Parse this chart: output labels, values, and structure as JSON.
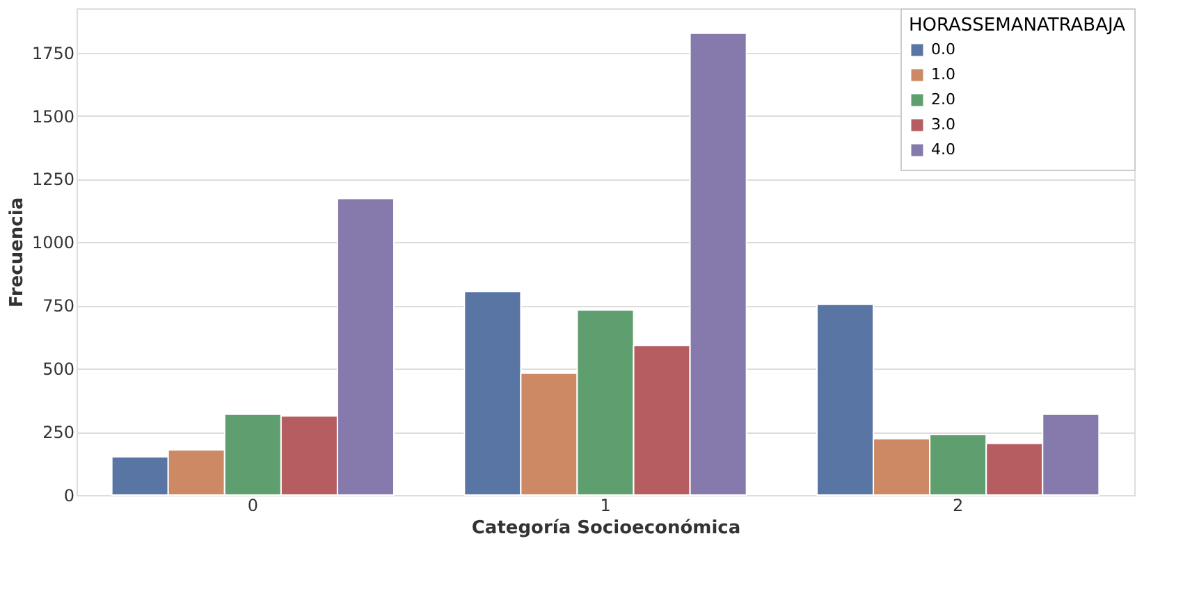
{
  "chart_data": {
    "type": "bar",
    "xlabel": "Categoría Socioeconómica",
    "ylabel": "Frecuencia",
    "legend_title": "HORASSEMANATRABAJA",
    "categories": [
      "0",
      "1",
      "2"
    ],
    "series": [
      {
        "name": "0.0",
        "color": "#5975a4",
        "values": [
          151,
          805,
          754
        ]
      },
      {
        "name": "1.0",
        "color": "#cc8963",
        "values": [
          179,
          482,
          223
        ]
      },
      {
        "name": "2.0",
        "color": "#5f9e6e",
        "values": [
          320,
          732,
          239
        ]
      },
      {
        "name": "3.0",
        "color": "#b55d60",
        "values": [
          313,
          591,
          204
        ]
      },
      {
        "name": "4.0",
        "color": "#857aab",
        "values": [
          1173,
          1827,
          320
        ]
      }
    ],
    "ylim": [
      0,
      1925
    ],
    "yticks": [
      0,
      250,
      500,
      750,
      1000,
      1250,
      1500,
      1750
    ],
    "grid": "y",
    "legend": "top right"
  }
}
